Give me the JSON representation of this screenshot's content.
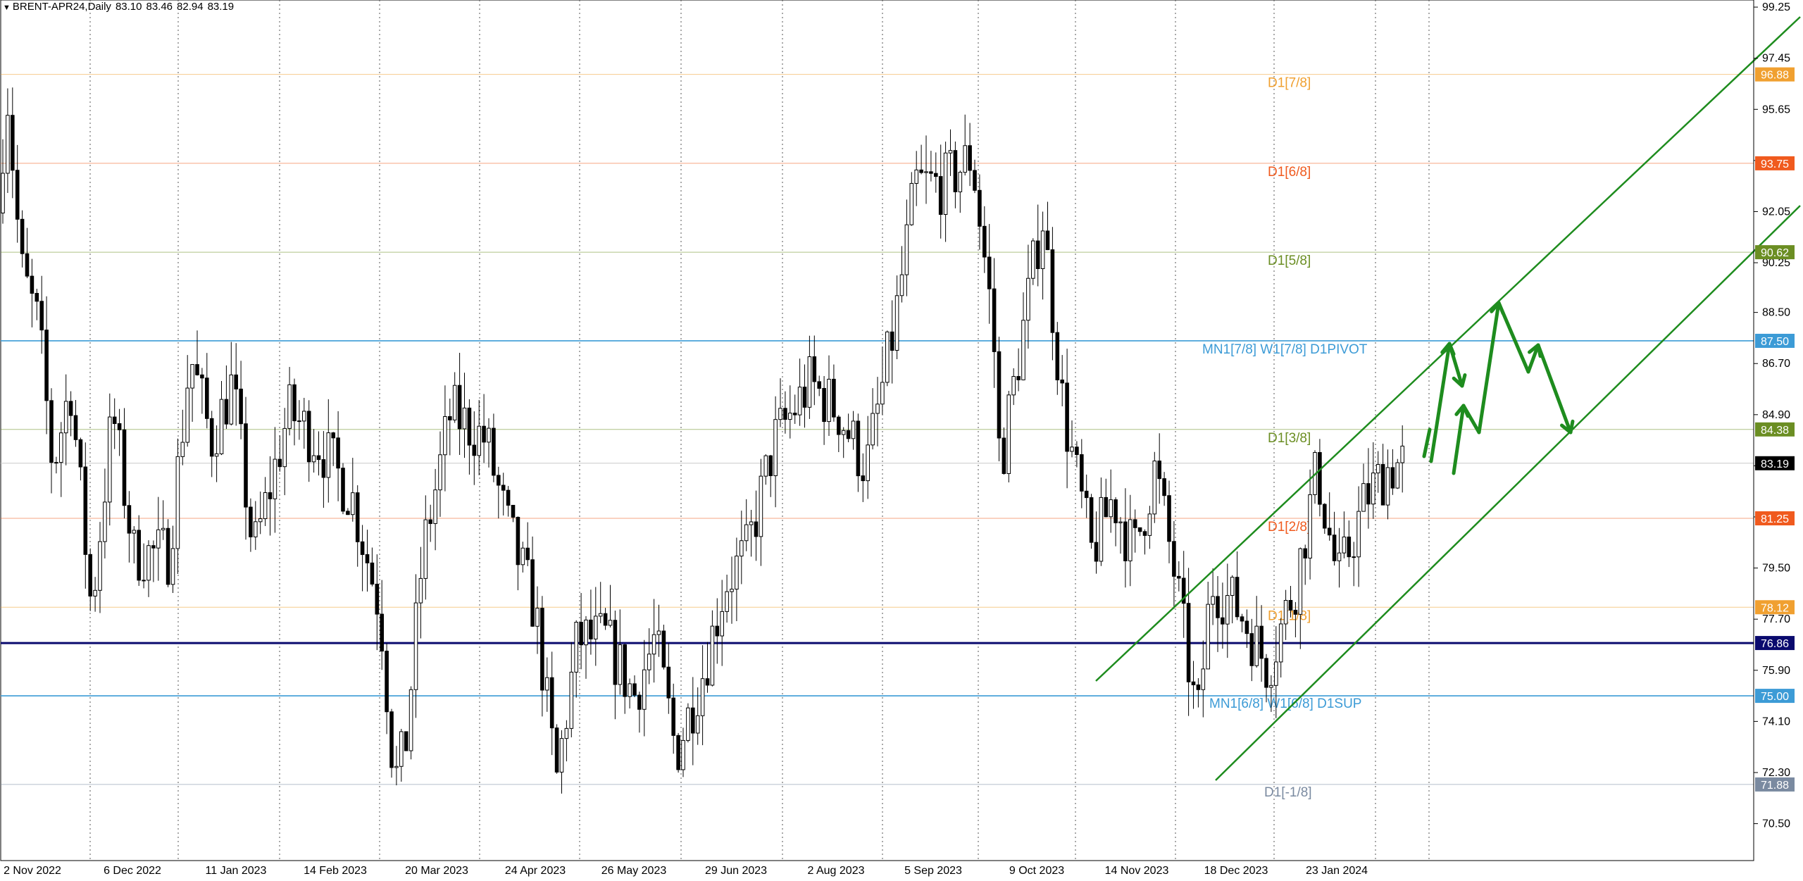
{
  "header": {
    "symbol": "BRENT-APR24,Daily",
    "open": "83.10",
    "high": "83.46",
    "low": "82.94",
    "close": "83.19"
  },
  "chart_data": {
    "type": "candlestick",
    "title": "BRENT-APR24,Daily",
    "ylim": [
      69.2,
      99.5
    ],
    "y_ticks": [
      99.25,
      97.45,
      95.65,
      93.85,
      92.05,
      90.25,
      88.5,
      86.7,
      84.9,
      83.1,
      81.3,
      79.5,
      77.7,
      75.9,
      74.1,
      72.3,
      70.5
    ],
    "x_ticks": [
      "2 Nov 2022",
      "6 Dec 2022",
      "11 Jan 2023",
      "14 Feb 2023",
      "20 Mar 2023",
      "24 Apr 2023",
      "26 May 2023",
      "29 Jun 2023",
      "2 Aug 2023",
      "5 Sep 2023",
      "9 Oct 2023",
      "14 Nov 2023",
      "18 Dec 2023",
      "23 Jan 2024"
    ],
    "grid": "vertical-dotted",
    "current_price": {
      "value": 83.19,
      "label": "83.19"
    },
    "levels": [
      {
        "label": "D1[7/8]",
        "value": 96.88,
        "price_label": "96.88",
        "color": "#f0a030"
      },
      {
        "label": "D1[6/8]",
        "value": 93.75,
        "price_label": "93.75",
        "color": "#f05a1e"
      },
      {
        "label": "D1[5/8]",
        "value": 90.62,
        "price_label": "90.62",
        "color": "#6b8e23"
      },
      {
        "label": "MN1[7/8] W1[7/8] D1PIVOT",
        "value": 87.5,
        "price_label": "87.50",
        "color": "#3c9bd6"
      },
      {
        "label": "D1[3/8]",
        "value": 84.38,
        "price_label": "84.38",
        "color": "#6b8e23"
      },
      {
        "label": "D1[2/8]",
        "value": 81.25,
        "price_label": "81.25",
        "color": "#f05a1e"
      },
      {
        "label": "D1[1/8]",
        "value": 78.12,
        "price_label": "78.12",
        "color": "#f0a030"
      },
      {
        "label": "",
        "value": 76.86,
        "price_label": "76.86",
        "color": "#0a0a6e"
      },
      {
        "label": "MN1[6/8] W1[6/8] D1SUP",
        "value": 75.0,
        "price_label": "75.00",
        "color": "#3c9bd6"
      },
      {
        "label": "D1[-1/8]",
        "value": 71.88,
        "price_label": "71.88",
        "color": "#7a8aa0"
      }
    ],
    "colors": {
      "channel": "#1e8c1e",
      "arrows": "#1e8c1e"
    }
  }
}
